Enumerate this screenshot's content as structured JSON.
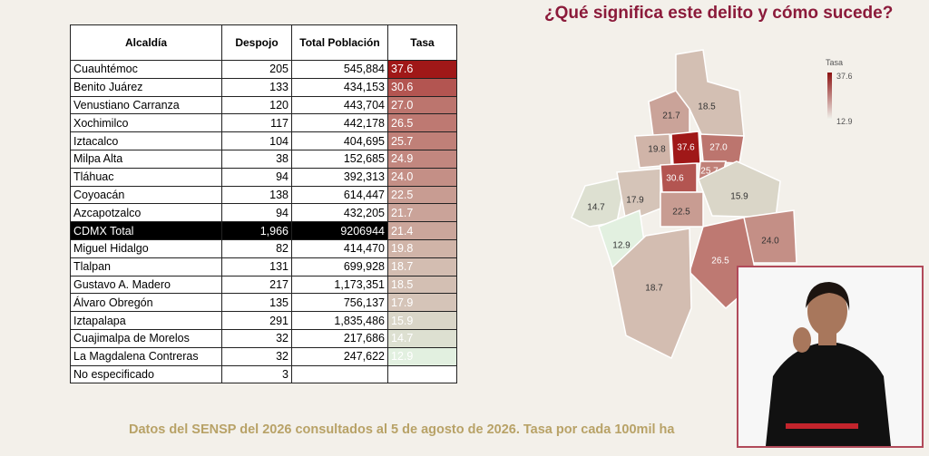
{
  "header": {
    "title": "¿Qué significa este delito y cómo sucede?"
  },
  "table": {
    "columns": [
      "Alcaldía",
      "Despojo",
      "Total Población",
      "Tasa"
    ],
    "rows": [
      [
        "Cuauhtémoc",
        "205",
        "545,884",
        "37.6"
      ],
      [
        "Benito Juárez",
        "133",
        "434,153",
        "30.6"
      ],
      [
        "Venustiano Carranza",
        "120",
        "443,704",
        "27.0"
      ],
      [
        "Xochimilco",
        "117",
        "442,178",
        "26.5"
      ],
      [
        "Iztacalco",
        "104",
        "404,695",
        "25.7"
      ],
      [
        "Milpa Alta",
        "38",
        "152,685",
        "24.9"
      ],
      [
        "Tláhuac",
        "94",
        "392,313",
        "24.0"
      ],
      [
        "Coyoacán",
        "138",
        "614,447",
        "22.5"
      ],
      [
        "Azcapotzalco",
        "94",
        "432,205",
        "21.7"
      ],
      [
        "CDMX Total",
        "1,966",
        "9206944",
        "21.4"
      ],
      [
        "Miguel Hidalgo",
        "82",
        "414,470",
        "19.8"
      ],
      [
        "Tlalpan",
        "131",
        "699,928",
        "18.7"
      ],
      [
        "Gustavo A. Madero",
        "217",
        "1,173,351",
        "18.5"
      ],
      [
        "Álvaro Obregón",
        "135",
        "756,137",
        "17.9"
      ],
      [
        "Iztapalapa",
        "291",
        "1,835,486",
        "15.9"
      ],
      [
        "Cuajimalpa de Morelos",
        "32",
        "217,686",
        "14.7"
      ],
      [
        "La Magdalena Contreras",
        "32",
        "247,622",
        "12.9"
      ],
      [
        "No especificado",
        "3",
        "",
        ""
      ]
    ]
  },
  "map": {
    "legend": {
      "title": "Tasa",
      "max": "37.6",
      "min": "12.9"
    },
    "labels": [
      "21.7",
      "18.5",
      "19.8",
      "37.6",
      "27.0",
      "25.7",
      "30.6",
      "15.9",
      "14.7",
      "17.9",
      "22.5",
      "12.9",
      "24.0",
      "26.5",
      "18.7"
    ]
  },
  "footer": {
    "text": "Datos del SENSP del 2026 consultados al 5 de agosto de 2026. Tasa por cada 100mil ha"
  }
}
